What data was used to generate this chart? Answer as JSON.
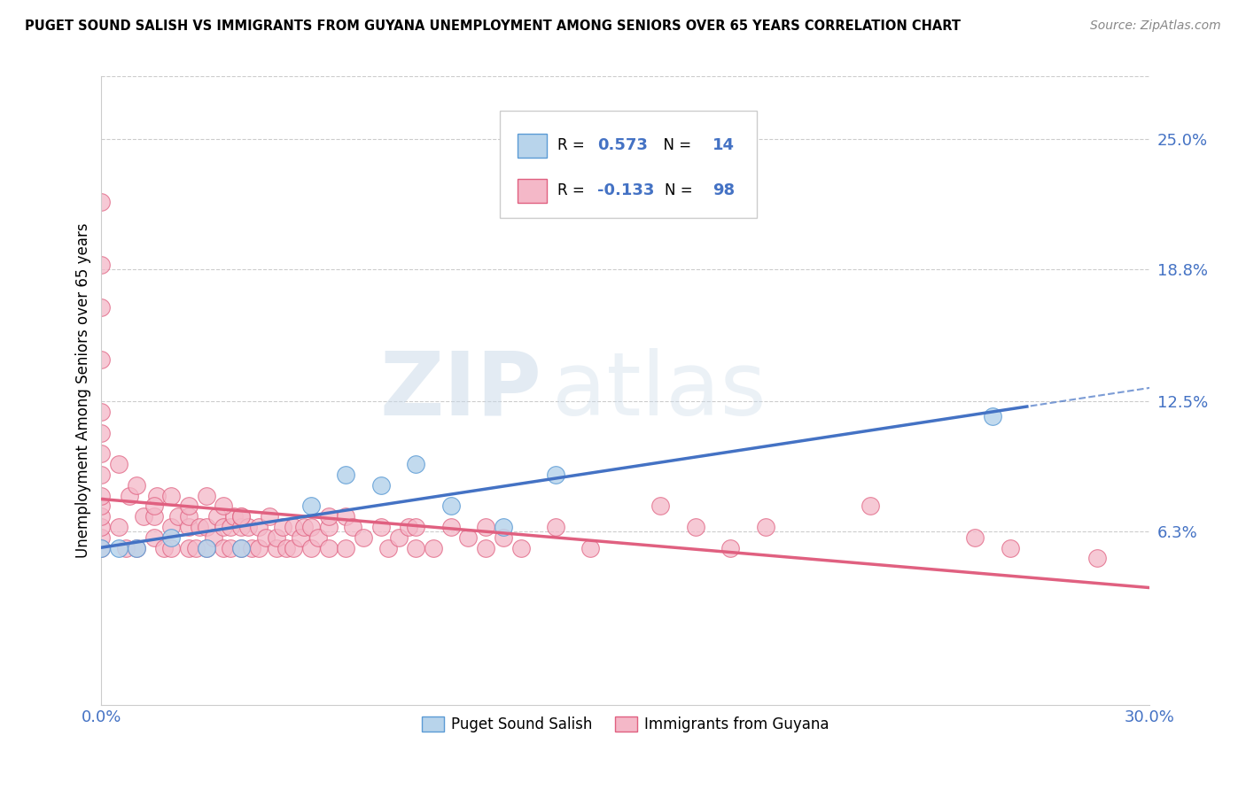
{
  "title": "PUGET SOUND SALISH VS IMMIGRANTS FROM GUYANA UNEMPLOYMENT AMONG SENIORS OVER 65 YEARS CORRELATION CHART",
  "source": "Source: ZipAtlas.com",
  "ylabel": "Unemployment Among Seniors over 65 years",
  "xlim": [
    0.0,
    0.3
  ],
  "ylim": [
    -0.02,
    0.28
  ],
  "x_tick_labels": [
    "0.0%",
    "30.0%"
  ],
  "x_tick_pos": [
    0.0,
    0.3
  ],
  "y_tick_labels": [
    "6.3%",
    "12.5%",
    "18.8%",
    "25.0%"
  ],
  "y_tick_values": [
    0.063,
    0.125,
    0.188,
    0.25
  ],
  "watermark_zip": "ZIP",
  "watermark_atlas": "atlas",
  "series1": {
    "name": "Puget Sound Salish",
    "color": "#b8d4eb",
    "edge_color": "#5b9bd5",
    "R": 0.573,
    "N": 14,
    "line_color": "#4472c4",
    "x": [
      0.0,
      0.005,
      0.01,
      0.02,
      0.03,
      0.04,
      0.06,
      0.07,
      0.08,
      0.09,
      0.1,
      0.115,
      0.13,
      0.255
    ],
    "y": [
      0.055,
      0.055,
      0.055,
      0.06,
      0.055,
      0.055,
      0.075,
      0.09,
      0.085,
      0.095,
      0.075,
      0.065,
      0.09,
      0.118
    ]
  },
  "series2": {
    "name": "Immigrants from Guyana",
    "color": "#f4b8c8",
    "edge_color": "#e06080",
    "R": -0.133,
    "N": 98,
    "line_color": "#e06080",
    "x": [
      0.0,
      0.0,
      0.0,
      0.0,
      0.0,
      0.0,
      0.0,
      0.0,
      0.0,
      0.0,
      0.0,
      0.0,
      0.0,
      0.0,
      0.005,
      0.007,
      0.008,
      0.01,
      0.012,
      0.015,
      0.015,
      0.016,
      0.018,
      0.02,
      0.02,
      0.022,
      0.025,
      0.025,
      0.025,
      0.027,
      0.028,
      0.03,
      0.03,
      0.032,
      0.033,
      0.035,
      0.035,
      0.037,
      0.037,
      0.038,
      0.04,
      0.04,
      0.04,
      0.042,
      0.043,
      0.045,
      0.045,
      0.047,
      0.048,
      0.05,
      0.05,
      0.052,
      0.053,
      0.055,
      0.055,
      0.057,
      0.058,
      0.06,
      0.06,
      0.062,
      0.065,
      0.065,
      0.065,
      0.07,
      0.07,
      0.072,
      0.075,
      0.08,
      0.082,
      0.085,
      0.088,
      0.09,
      0.09,
      0.095,
      0.1,
      0.105,
      0.11,
      0.11,
      0.115,
      0.12,
      0.13,
      0.14,
      0.16,
      0.17,
      0.18,
      0.19,
      0.22,
      0.25,
      0.26,
      0.285,
      0.005,
      0.01,
      0.015,
      0.02,
      0.025,
      0.03,
      0.035,
      0.04
    ],
    "y": [
      0.055,
      0.06,
      0.065,
      0.07,
      0.075,
      0.08,
      0.09,
      0.1,
      0.11,
      0.12,
      0.145,
      0.17,
      0.19,
      0.22,
      0.065,
      0.055,
      0.08,
      0.055,
      0.07,
      0.06,
      0.07,
      0.08,
      0.055,
      0.055,
      0.065,
      0.07,
      0.055,
      0.065,
      0.07,
      0.055,
      0.065,
      0.055,
      0.065,
      0.06,
      0.07,
      0.055,
      0.065,
      0.055,
      0.065,
      0.07,
      0.055,
      0.065,
      0.07,
      0.065,
      0.055,
      0.055,
      0.065,
      0.06,
      0.07,
      0.055,
      0.06,
      0.065,
      0.055,
      0.055,
      0.065,
      0.06,
      0.065,
      0.055,
      0.065,
      0.06,
      0.055,
      0.065,
      0.07,
      0.055,
      0.07,
      0.065,
      0.06,
      0.065,
      0.055,
      0.06,
      0.065,
      0.055,
      0.065,
      0.055,
      0.065,
      0.06,
      0.055,
      0.065,
      0.06,
      0.055,
      0.065,
      0.055,
      0.075,
      0.065,
      0.055,
      0.065,
      0.075,
      0.06,
      0.055,
      0.05,
      0.095,
      0.085,
      0.075,
      0.08,
      0.075,
      0.08,
      0.075,
      0.07
    ]
  },
  "legend_R_color": "#4472c4",
  "legend_neg_R_color": "#4472c4"
}
